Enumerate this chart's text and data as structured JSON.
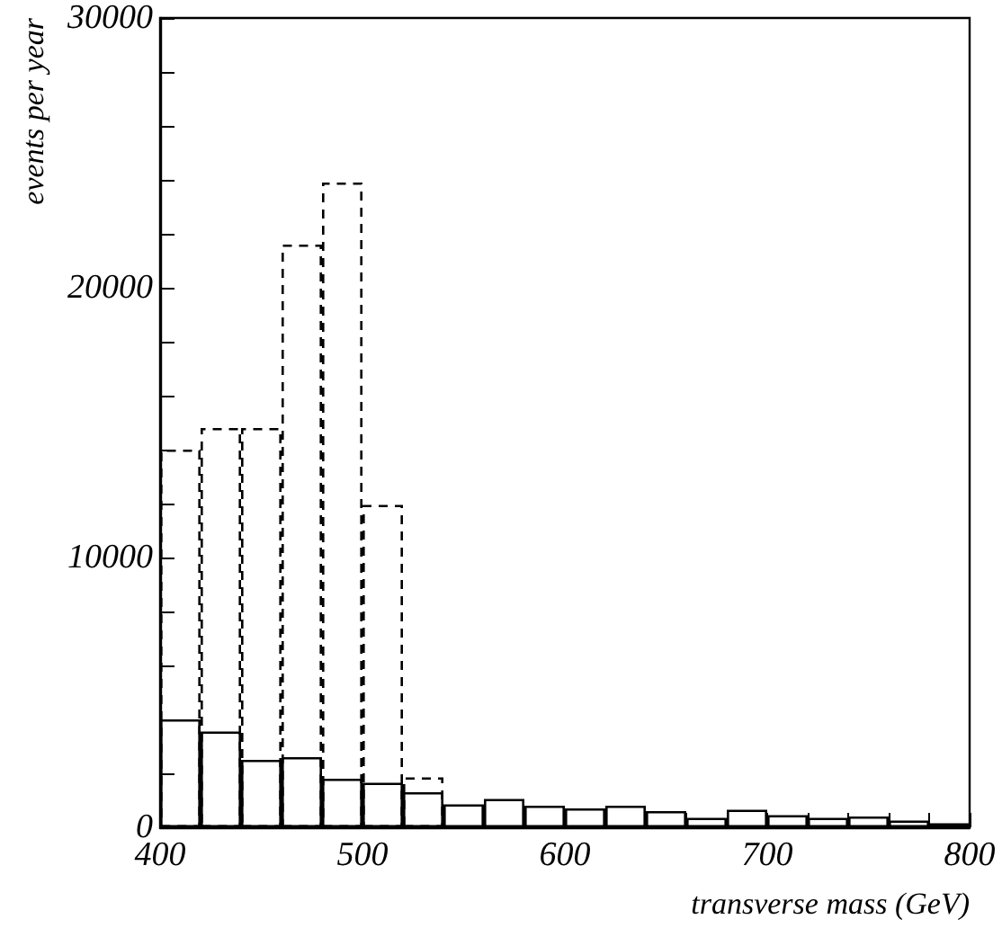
{
  "chart_data": {
    "type": "histogram",
    "xlabel": "transverse mass (GeV)",
    "ylabel": "events per year",
    "bins": [
      400,
      420,
      440,
      460,
      480,
      500,
      520,
      540,
      560,
      580,
      600,
      620,
      640,
      660,
      680,
      700,
      720,
      740,
      760,
      780,
      800
    ],
    "series": [
      {
        "color": "#000000",
        "line_style": "solid",
        "values": [
          4000,
          3550,
          2500,
          2600,
          1800,
          1650,
          1300,
          850,
          1050,
          800,
          700,
          800,
          600,
          350,
          650,
          450,
          350,
          400,
          250,
          150
        ]
      },
      {
        "color": "#000000",
        "line_style": "dashed",
        "values": [
          14000,
          14800,
          14800,
          21600,
          23900,
          11950,
          1850,
          null,
          null,
          null,
          null,
          null,
          null,
          null,
          null,
          null,
          null,
          null,
          null,
          null
        ]
      }
    ],
    "xlim": [
      400,
      800
    ],
    "ylim": [
      0,
      30000
    ],
    "xticks": [
      400,
      {
        "value": 420,
        "label": null
      },
      {
        "value": 440,
        "label": null
      },
      {
        "value": 460,
        "label": null
      },
      {
        "value": 480,
        "label": null
      },
      500,
      {
        "value": 520,
        "label": null
      },
      {
        "value": 540,
        "label": null
      },
      {
        "value": 560,
        "label": null
      },
      {
        "value": 580,
        "label": null
      },
      600,
      {
        "value": 620,
        "label": null
      },
      {
        "value": 640,
        "label": null
      },
      {
        "value": 660,
        "label": null
      },
      {
        "value": 680,
        "label": null
      },
      700,
      {
        "value": 720,
        "label": null
      },
      {
        "value": 740,
        "label": null
      },
      {
        "value": 760,
        "label": null
      },
      {
        "value": 780,
        "label": null
      },
      800
    ],
    "yticks": [
      0,
      {
        "value": 2000,
        "label": null
      },
      {
        "value": 4000,
        "label": null
      },
      {
        "value": 6000,
        "label": null
      },
      {
        "value": 8000,
        "label": null
      },
      10000,
      {
        "value": 12000,
        "label": null
      },
      {
        "value": 14000,
        "label": null
      },
      {
        "value": 16000,
        "label": null
      },
      {
        "value": 18000,
        "label": null
      },
      20000,
      {
        "value": 22000,
        "label": null
      },
      {
        "value": 24000,
        "label": null
      },
      {
        "value": 26000,
        "label": null
      },
      {
        "value": 28000,
        "label": null
      },
      30000
    ],
    "grid": false
  }
}
